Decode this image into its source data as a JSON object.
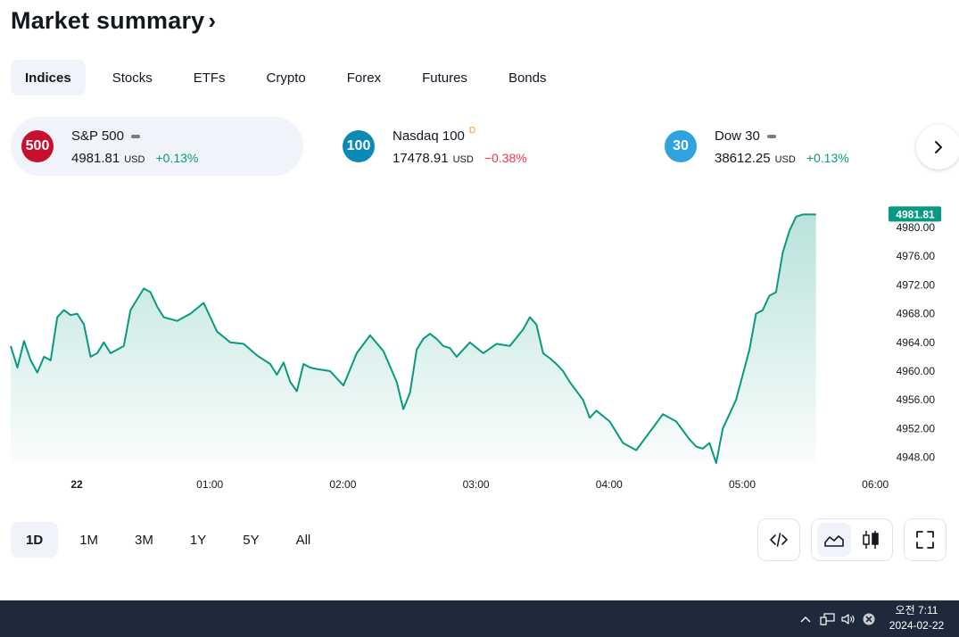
{
  "header": {
    "title": "Market summary",
    "chevron": "›"
  },
  "tabs": [
    {
      "label": "Indices",
      "active": true
    },
    {
      "label": "Stocks"
    },
    {
      "label": "ETFs"
    },
    {
      "label": "Crypto"
    },
    {
      "label": "Forex"
    },
    {
      "label": "Futures"
    },
    {
      "label": "Bonds"
    }
  ],
  "cards": [
    {
      "badge": "500",
      "badge_color": "#c8102e",
      "name": "S&P 500",
      "marker": "dash",
      "price": "4981.81",
      "currency": "USD",
      "change": "+0.13%",
      "direction": "up",
      "active": true
    },
    {
      "badge": "100",
      "badge_color": "#0b8ab5",
      "name": "Nasdaq 100",
      "marker": "D",
      "price": "17478.91",
      "currency": "USD",
      "change": "−0.38%",
      "direction": "down"
    },
    {
      "badge": "30",
      "badge_color": "#2ea3de",
      "name": "Dow 30",
      "marker": "dash",
      "price": "38612.25",
      "currency": "USD",
      "change": "+0.13%",
      "direction": "up"
    }
  ],
  "chart_data": {
    "type": "area",
    "title": "",
    "xlabel": "",
    "ylabel": "",
    "series_color": "#089981",
    "last_value_label": "4981.81",
    "x_ticks": [
      "22",
      "01:00",
      "02:00",
      "03:00",
      "04:00",
      "05:00",
      "06:00"
    ],
    "y_ticks": [
      "4980.00",
      "4976.00",
      "4972.00",
      "4968.00",
      "4964.00",
      "4960.00",
      "4956.00",
      "4952.00",
      "4948.00"
    ],
    "ylim": [
      4946,
      4983
    ],
    "series": [
      {
        "x_hours": [
          0.0,
          0.05,
          0.1,
          0.15,
          0.2,
          0.25,
          0.3,
          0.35,
          0.4,
          0.45,
          0.5,
          0.55,
          0.6,
          0.65,
          0.7,
          0.75,
          0.8,
          0.85,
          0.9,
          0.95,
          1.0,
          1.05,
          1.1,
          1.15,
          1.25,
          1.35,
          1.45,
          1.55,
          1.65,
          1.75,
          1.85,
          1.95,
          2.0,
          2.05,
          2.1,
          2.15,
          2.2,
          2.25,
          2.3,
          2.4,
          2.5,
          2.6,
          2.7,
          2.8,
          2.9,
          2.95,
          3.0,
          3.05,
          3.1,
          3.15,
          3.2,
          3.25,
          3.3,
          3.35,
          3.45,
          3.55,
          3.65,
          3.75,
          3.85,
          3.9,
          3.95,
          4.0,
          4.05,
          4.1,
          4.15,
          4.2,
          4.3,
          4.35,
          4.4,
          4.5,
          4.6,
          4.7,
          4.8,
          4.9,
          5.0,
          5.1,
          5.15,
          5.2,
          5.25,
          5.3,
          5.35,
          5.45,
          5.55,
          5.6,
          5.65,
          5.7,
          5.75,
          5.8,
          5.85,
          5.9,
          5.95,
          6.0,
          6.05
        ],
        "values": [
          4963.5,
          4960.5,
          4964.2,
          4961.5,
          4959.8,
          4962.0,
          4961.5,
          4967.5,
          4968.5,
          4967.8,
          4968.0,
          4966.5,
          4962.0,
          4962.5,
          4964.0,
          4962.5,
          4963.0,
          4963.5,
          4968.5,
          4970.0,
          4971.5,
          4971.0,
          4969.0,
          4967.5,
          4967.0,
          4968.0,
          4969.5,
          4965.5,
          4964.0,
          4963.8,
          4962.2,
          4961.0,
          4959.5,
          4961.2,
          4958.5,
          4957.2,
          4961.0,
          4960.5,
          4960.3,
          4960.0,
          4958.0,
          4962.5,
          4965.0,
          4962.8,
          4958.5,
          4954.7,
          4957.0,
          4963.0,
          4964.5,
          4965.2,
          4964.5,
          4963.5,
          4963.2,
          4962.0,
          4964.0,
          4962.5,
          4963.8,
          4963.5,
          4965.8,
          4967.5,
          4966.5,
          4962.5,
          4961.8,
          4961.0,
          4960.0,
          4958.5,
          4956.0,
          4953.5,
          4954.5,
          4953.0,
          4950.0,
          4949.0,
          4951.5,
          4954.0,
          4953.0,
          4950.5,
          4949.5,
          4949.2,
          4950.0,
          4947.2,
          4952.0,
          4956.0,
          4963.0,
          4968.0,
          4968.5,
          4970.5,
          4971.0,
          4976.5,
          4979.5,
          4981.5,
          4981.81,
          4981.81,
          4981.81
        ]
      }
    ]
  },
  "ranges": [
    {
      "label": "1D",
      "active": true
    },
    {
      "label": "1M"
    },
    {
      "label": "3M"
    },
    {
      "label": "1Y"
    },
    {
      "label": "5Y"
    },
    {
      "label": "All"
    }
  ],
  "toolbar": {
    "embed_icon": "code-icon",
    "line_icon": "area-chart-icon",
    "candles_icon": "candlestick-icon",
    "fullscreen_icon": "fullscreen-icon"
  },
  "taskbar": {
    "time": "오전 7:11",
    "date": "2024-02-22"
  }
}
